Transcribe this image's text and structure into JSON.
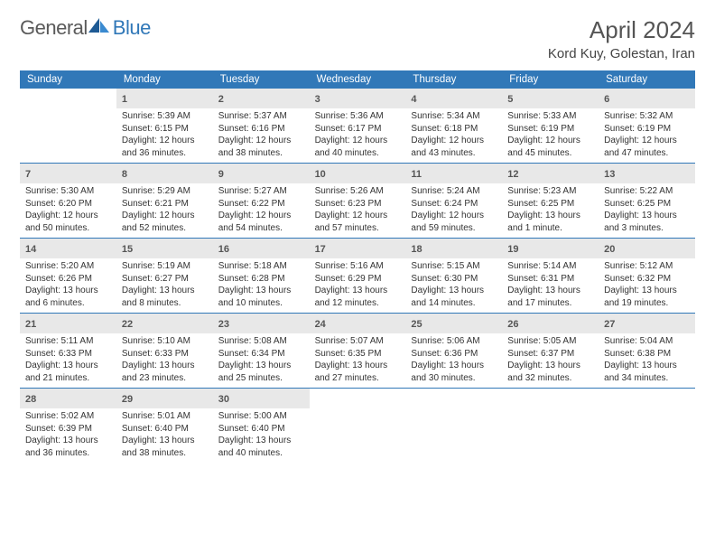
{
  "logo": {
    "text1": "General",
    "text2": "Blue",
    "brand_color": "#3178b8",
    "text_color": "#5a5a5a"
  },
  "title": "April 2024",
  "location": "Kord Kuy, Golestan, Iran",
  "colors": {
    "header_bg": "#3178b8",
    "daynum_bg": "#e8e8e8",
    "border": "#3178b8"
  },
  "day_names": [
    "Sunday",
    "Monday",
    "Tuesday",
    "Wednesday",
    "Thursday",
    "Friday",
    "Saturday"
  ],
  "weeks": [
    [
      {
        "empty": true
      },
      {
        "n": "1",
        "sr": "Sunrise: 5:39 AM",
        "ss": "Sunset: 6:15 PM",
        "dl": "Daylight: 12 hours and 36 minutes."
      },
      {
        "n": "2",
        "sr": "Sunrise: 5:37 AM",
        "ss": "Sunset: 6:16 PM",
        "dl": "Daylight: 12 hours and 38 minutes."
      },
      {
        "n": "3",
        "sr": "Sunrise: 5:36 AM",
        "ss": "Sunset: 6:17 PM",
        "dl": "Daylight: 12 hours and 40 minutes."
      },
      {
        "n": "4",
        "sr": "Sunrise: 5:34 AM",
        "ss": "Sunset: 6:18 PM",
        "dl": "Daylight: 12 hours and 43 minutes."
      },
      {
        "n": "5",
        "sr": "Sunrise: 5:33 AM",
        "ss": "Sunset: 6:19 PM",
        "dl": "Daylight: 12 hours and 45 minutes."
      },
      {
        "n": "6",
        "sr": "Sunrise: 5:32 AM",
        "ss": "Sunset: 6:19 PM",
        "dl": "Daylight: 12 hours and 47 minutes."
      }
    ],
    [
      {
        "n": "7",
        "sr": "Sunrise: 5:30 AM",
        "ss": "Sunset: 6:20 PM",
        "dl": "Daylight: 12 hours and 50 minutes."
      },
      {
        "n": "8",
        "sr": "Sunrise: 5:29 AM",
        "ss": "Sunset: 6:21 PM",
        "dl": "Daylight: 12 hours and 52 minutes."
      },
      {
        "n": "9",
        "sr": "Sunrise: 5:27 AM",
        "ss": "Sunset: 6:22 PM",
        "dl": "Daylight: 12 hours and 54 minutes."
      },
      {
        "n": "10",
        "sr": "Sunrise: 5:26 AM",
        "ss": "Sunset: 6:23 PM",
        "dl": "Daylight: 12 hours and 57 minutes."
      },
      {
        "n": "11",
        "sr": "Sunrise: 5:24 AM",
        "ss": "Sunset: 6:24 PM",
        "dl": "Daylight: 12 hours and 59 minutes."
      },
      {
        "n": "12",
        "sr": "Sunrise: 5:23 AM",
        "ss": "Sunset: 6:25 PM",
        "dl": "Daylight: 13 hours and 1 minute."
      },
      {
        "n": "13",
        "sr": "Sunrise: 5:22 AM",
        "ss": "Sunset: 6:25 PM",
        "dl": "Daylight: 13 hours and 3 minutes."
      }
    ],
    [
      {
        "n": "14",
        "sr": "Sunrise: 5:20 AM",
        "ss": "Sunset: 6:26 PM",
        "dl": "Daylight: 13 hours and 6 minutes."
      },
      {
        "n": "15",
        "sr": "Sunrise: 5:19 AM",
        "ss": "Sunset: 6:27 PM",
        "dl": "Daylight: 13 hours and 8 minutes."
      },
      {
        "n": "16",
        "sr": "Sunrise: 5:18 AM",
        "ss": "Sunset: 6:28 PM",
        "dl": "Daylight: 13 hours and 10 minutes."
      },
      {
        "n": "17",
        "sr": "Sunrise: 5:16 AM",
        "ss": "Sunset: 6:29 PM",
        "dl": "Daylight: 13 hours and 12 minutes."
      },
      {
        "n": "18",
        "sr": "Sunrise: 5:15 AM",
        "ss": "Sunset: 6:30 PM",
        "dl": "Daylight: 13 hours and 14 minutes."
      },
      {
        "n": "19",
        "sr": "Sunrise: 5:14 AM",
        "ss": "Sunset: 6:31 PM",
        "dl": "Daylight: 13 hours and 17 minutes."
      },
      {
        "n": "20",
        "sr": "Sunrise: 5:12 AM",
        "ss": "Sunset: 6:32 PM",
        "dl": "Daylight: 13 hours and 19 minutes."
      }
    ],
    [
      {
        "n": "21",
        "sr": "Sunrise: 5:11 AM",
        "ss": "Sunset: 6:33 PM",
        "dl": "Daylight: 13 hours and 21 minutes."
      },
      {
        "n": "22",
        "sr": "Sunrise: 5:10 AM",
        "ss": "Sunset: 6:33 PM",
        "dl": "Daylight: 13 hours and 23 minutes."
      },
      {
        "n": "23",
        "sr": "Sunrise: 5:08 AM",
        "ss": "Sunset: 6:34 PM",
        "dl": "Daylight: 13 hours and 25 minutes."
      },
      {
        "n": "24",
        "sr": "Sunrise: 5:07 AM",
        "ss": "Sunset: 6:35 PM",
        "dl": "Daylight: 13 hours and 27 minutes."
      },
      {
        "n": "25",
        "sr": "Sunrise: 5:06 AM",
        "ss": "Sunset: 6:36 PM",
        "dl": "Daylight: 13 hours and 30 minutes."
      },
      {
        "n": "26",
        "sr": "Sunrise: 5:05 AM",
        "ss": "Sunset: 6:37 PM",
        "dl": "Daylight: 13 hours and 32 minutes."
      },
      {
        "n": "27",
        "sr": "Sunrise: 5:04 AM",
        "ss": "Sunset: 6:38 PM",
        "dl": "Daylight: 13 hours and 34 minutes."
      }
    ],
    [
      {
        "n": "28",
        "sr": "Sunrise: 5:02 AM",
        "ss": "Sunset: 6:39 PM",
        "dl": "Daylight: 13 hours and 36 minutes."
      },
      {
        "n": "29",
        "sr": "Sunrise: 5:01 AM",
        "ss": "Sunset: 6:40 PM",
        "dl": "Daylight: 13 hours and 38 minutes."
      },
      {
        "n": "30",
        "sr": "Sunrise: 5:00 AM",
        "ss": "Sunset: 6:40 PM",
        "dl": "Daylight: 13 hours and 40 minutes."
      },
      {
        "empty_trail": true
      },
      {
        "empty_trail": true
      },
      {
        "empty_trail": true
      },
      {
        "empty_trail": true
      }
    ]
  ]
}
